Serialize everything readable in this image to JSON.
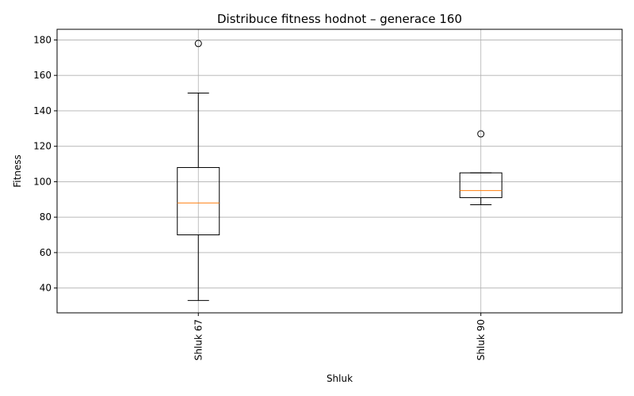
{
  "chart_data": {
    "type": "boxplot",
    "title": "Distribuce fitness hodnot – generace 160",
    "xlabel": "Shluk",
    "ylabel": "Fitness",
    "ylim": [
      26,
      186
    ],
    "yticks": [
      40,
      60,
      80,
      100,
      120,
      140,
      160,
      180
    ],
    "grid": true,
    "categories": [
      "Shluk 67",
      "Shluk 90"
    ],
    "boxes": [
      {
        "label": "Shluk 67",
        "whisker_low": 33,
        "q1": 70,
        "median": 88,
        "q3": 108,
        "whisker_high": 150,
        "outliers": [
          178
        ]
      },
      {
        "label": "Shluk 90",
        "whisker_low": 87,
        "q1": 91,
        "median": 95,
        "q3": 105,
        "whisker_high": 105,
        "outliers": [
          127
        ]
      }
    ],
    "colors": {
      "box": "#000000",
      "median": "#ff7f0e",
      "grid": "#b0b0b0"
    }
  }
}
